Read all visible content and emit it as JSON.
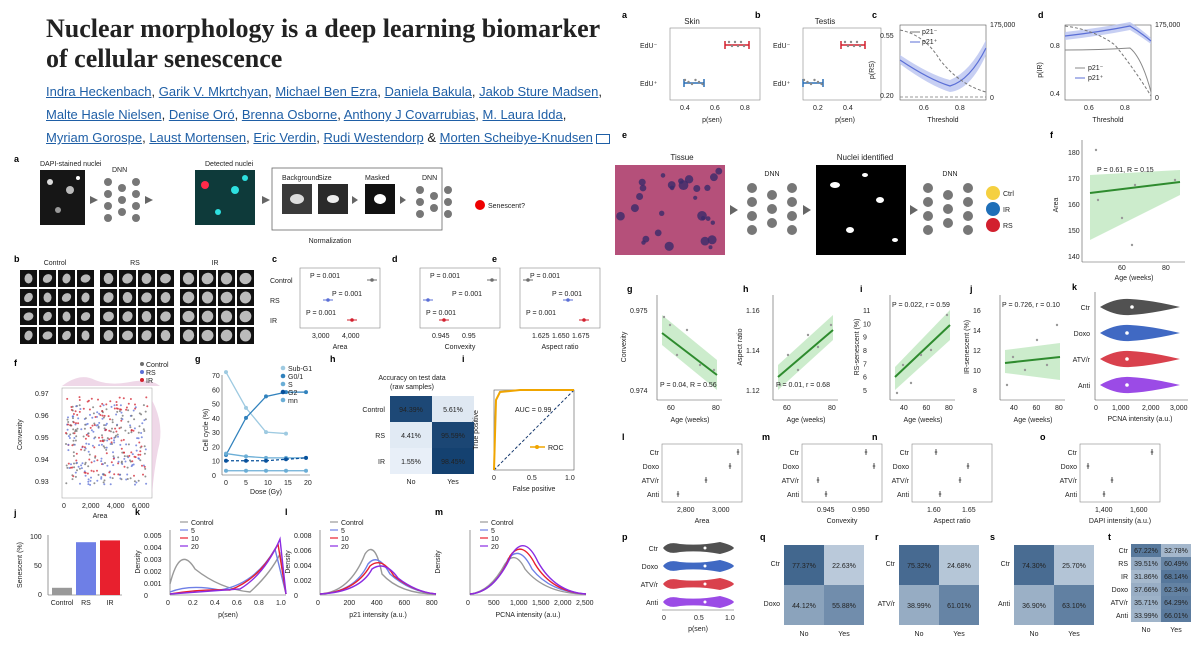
{
  "title": "Nuclear morphology is a deep learning biomarker of cellular senescence",
  "authors": [
    "Indra Heckenbach",
    "Garik V. Mkrtchyan",
    "Michael Ben Ezra",
    "Daniela Bakula",
    "Jakob Sture Madsen",
    "Malte Hasle Nielsen",
    "Denise Oró",
    "Brenna Osborne",
    "Anthony J Covarrubias",
    "M. Laura Idda",
    "Myriam Gorospe",
    "Laust Mortensen",
    "Eric Verdin",
    "Rudi Westendorp"
  ],
  "last_author": "Morten Scheibye-Knudsen",
  "and_sep": "&",
  "panel_a": {
    "letter": "a",
    "input_label": "DAPI-stained nuclei",
    "dnn": "DNN",
    "detected": "Detected nuclei",
    "steps": [
      "Background",
      "Size",
      "Masked"
    ],
    "normalization": "Normalization",
    "dnn2": "DNN",
    "output": "Senescent?"
  },
  "panel_b": {
    "letter": "b",
    "groups": [
      "Control",
      "RS",
      "IR"
    ]
  },
  "panel_cde": [
    {
      "letter": "c",
      "xlabel": "Area",
      "ticks": [
        "3,000",
        "4,000"
      ],
      "pvals": [
        "P = 0.001",
        "P = 0.001",
        "P = 0.001"
      ]
    },
    {
      "letter": "d",
      "xlabel": "Convexity",
      "ticks": [
        "0.945",
        "0.95"
      ],
      "pvals": [
        "P = 0.001",
        "P = 0.001",
        "P = 0.001"
      ]
    },
    {
      "letter": "e",
      "xlabel": "Aspect ratio",
      "ticks": [
        "1.625",
        "1.650",
        "1.675"
      ],
      "pvals": [
        "P = 0.001",
        "P = 0.001",
        "P = 0.001"
      ]
    }
  ],
  "cde_rows": [
    "Control",
    "RS",
    "IR"
  ],
  "panel_f": {
    "letter": "f",
    "legend": [
      "Control",
      "RS",
      "IR"
    ],
    "xlabel": "Area",
    "ylabel": "Convexity",
    "xticks": [
      "0",
      "2,000",
      "4,000",
      "6,000"
    ],
    "yticks": [
      "0.97",
      "0.96",
      "0.95",
      "0.94",
      "0.93"
    ]
  },
  "panel_g": {
    "letter": "g",
    "legend": [
      "Sub-G1",
      "G0/1",
      "S",
      "G2",
      "mn"
    ],
    "xlabel": "Dose (Gy)",
    "ylabel": "Cell cycle (%)",
    "xticks": [
      "0",
      "5",
      "10",
      "15",
      "20"
    ],
    "yticks": [
      "0",
      "10",
      "20",
      "30",
      "40",
      "50",
      "60",
      "70"
    ]
  },
  "panel_h": {
    "letter": "h",
    "title": "Accuracy on test data",
    "subtitle": "(raw samples)",
    "rows": [
      "Control",
      "RS",
      "IR"
    ],
    "cols": [
      "No",
      "Yes"
    ],
    "cells": [
      [
        "94.39%",
        "5.61%"
      ],
      [
        "4.41%",
        "95.59%"
      ],
      [
        "1.55%",
        "98.45%"
      ]
    ]
  },
  "panel_i": {
    "letter": "i",
    "auc": "AUC = 0.99",
    "legend": "ROC",
    "xlabel": "False positive",
    "ylabel": "True positive",
    "ticks": [
      "0",
      "0.5",
      "1.0"
    ]
  },
  "panel_j": {
    "letter": "j",
    "ylabel": "Senescent (%)",
    "cats": [
      "Control",
      "RS",
      "IR"
    ],
    "yticks": [
      "0",
      "50",
      "100"
    ]
  },
  "panel_k": {
    "letter": "k",
    "legend": [
      "Control",
      "5",
      "10",
      "20"
    ],
    "xlabel": "p(sen)",
    "ylabel": "Density",
    "xticks": [
      "0",
      "0.2",
      "0.4",
      "0.6",
      "0.8",
      "1.0"
    ],
    "yticks": [
      "0",
      "0.001",
      "0.002",
      "0.003",
      "0.004",
      "0.005"
    ]
  },
  "panel_l": {
    "letter": "l",
    "legend": [
      "Control",
      "5",
      "10",
      "20"
    ],
    "xlabel": "p21 intensity (a.u.)",
    "ylabel": "Density",
    "xticks": [
      "0",
      "200",
      "400",
      "600",
      "800"
    ],
    "yticks": [
      "0",
      "0.002",
      "0.004",
      "0.006",
      "0.008"
    ]
  },
  "panel_m": {
    "letter": "m",
    "legend": [
      "Control",
      "5",
      "10",
      "20"
    ],
    "xlabel": "PCNA intensity (a.u.)",
    "ylabel": "Density",
    "xticks": [
      "0",
      "500",
      "1,000",
      "1,500",
      "2,000",
      "2,500"
    ]
  },
  "right_top": [
    {
      "letter": "a",
      "title": "Skin",
      "rows": [
        "EdU⁻",
        "EdU⁺"
      ],
      "xlabel": "p(sen)",
      "ticks": [
        "0.4",
        "0.6",
        "0.8"
      ]
    },
    {
      "letter": "b",
      "title": "Testis",
      "rows": [
        "EdU⁻",
        "EdU⁺"
      ],
      "xlabel": "p(sen)",
      "ticks": [
        "0.2",
        "0.4"
      ]
    }
  ],
  "panel_rc": {
    "letter": "c",
    "ylabel": "p(RS)",
    "xlabel": "Threshold",
    "legend": [
      "p21⁻",
      "p21⁺"
    ],
    "yticks": [
      "0.55",
      "0.20"
    ],
    "rticks": [
      "175,000",
      "0"
    ],
    "xticks": [
      "0.6",
      "0.8"
    ]
  },
  "panel_rd": {
    "letter": "d",
    "ylabel": "p(IR)",
    "xlabel": "Threshold",
    "legend": [
      "p21⁻",
      "p21⁺"
    ],
    "yticks": [
      "0.8",
      "0.4"
    ],
    "rticks": [
      "175,000",
      "0"
    ],
    "xticks": [
      "0.6",
      "0.8"
    ]
  },
  "panel_re": {
    "letter": "e",
    "tissue": "Tissue",
    "dnn": "DNN",
    "nuclei": "Nuclei identified",
    "dnn2": "DNN",
    "classes": [
      "Ctrl",
      "IR",
      "RS"
    ]
  },
  "panel_rf": {
    "letter": "f",
    "ylabel": "Area",
    "xlabel": "Age (weeks)",
    "stat": "P = 0.61, R = 0.15",
    "yticks": [
      "180",
      "170",
      "160",
      "150",
      "140"
    ],
    "xticks": [
      "60",
      "80"
    ]
  },
  "row_gj": [
    {
      "letter": "g",
      "ylabel": "Convexity",
      "xlabel": "Age (weeks)",
      "stat": "P = 0.04, R = 0.56",
      "yticks": [
        "0.975",
        "0.974"
      ],
      "xticks": [
        "60",
        "80"
      ]
    },
    {
      "letter": "h",
      "ylabel": "Aspect ratio",
      "xlabel": "Age (weeks)",
      "stat": "P = 0.01, r = 0.68",
      "yticks": [
        "1.16",
        "1.14",
        "1.12"
      ],
      "xticks": [
        "60",
        "80"
      ]
    },
    {
      "letter": "i",
      "ylabel": "RS-senescent (%)",
      "xlabel": "Age (weeks)",
      "stat": "P = 0.022, r = 0.59",
      "yticks": [
        "11",
        "10",
        "9",
        "8",
        "7",
        "6",
        "5"
      ],
      "xticks": [
        "40",
        "60",
        "80"
      ]
    },
    {
      "letter": "j",
      "ylabel": "IR-senescent (%)",
      "xlabel": "Age (weeks)",
      "stat": "P = 0.726, r = 0.10",
      "yticks": [
        "16",
        "14",
        "12",
        "10",
        "8"
      ],
      "xticks": [
        "40",
        "60",
        "80"
      ]
    }
  ],
  "panel_rk": {
    "letter": "k",
    "rows": [
      "Ctr",
      "Doxo",
      "ATV/r",
      "Anti"
    ],
    "xlabel": "PCNA intensity (a.u.)",
    "xticks": [
      "0",
      "1,000",
      "2,000",
      "3,000"
    ]
  },
  "row_lo": [
    {
      "letter": "l",
      "xlabel": "Area",
      "ticks": [
        "2,800",
        "3,000"
      ]
    },
    {
      "letter": "m",
      "xlabel": "Convexity",
      "ticks": [
        "0.945",
        "0.950"
      ]
    },
    {
      "letter": "n",
      "xlabel": "Aspect ratio",
      "ticks": [
        "1.60",
        "1.65"
      ]
    },
    {
      "letter": "o",
      "xlabel": "DAPI intensity (a.u.)",
      "ticks": [
        "1,400",
        "1,600"
      ]
    }
  ],
  "lo_rows": [
    "Ctr",
    "Doxo",
    "ATV/r",
    "Anti"
  ],
  "panel_rp": {
    "letter": "p",
    "rows": [
      "Ctr",
      "Doxo",
      "ATV/r",
      "Anti"
    ],
    "xlabel": "p(sen)",
    "xticks": [
      "0",
      "0.5",
      "1.0"
    ]
  },
  "matrices": [
    {
      "letter": "q",
      "rows": [
        "Ctr",
        "Doxo"
      ],
      "cells": [
        [
          "77.37%",
          "22.63%"
        ],
        [
          "44.12%",
          "55.88%"
        ]
      ],
      "cols": [
        "No",
        "Yes"
      ]
    },
    {
      "letter": "r",
      "rows": [
        "Ctr",
        "ATV/r"
      ],
      "cells": [
        [
          "75.32%",
          "24.68%"
        ],
        [
          "38.99%",
          "61.01%"
        ]
      ],
      "cols": [
        "No",
        "Yes"
      ]
    },
    {
      "letter": "s",
      "rows": [
        "Ctr",
        "Anti"
      ],
      "cells": [
        [
          "74.30%",
          "25.70%"
        ],
        [
          "36.90%",
          "63.10%"
        ]
      ],
      "cols": [
        "No",
        "Yes"
      ]
    }
  ],
  "panel_rt": {
    "letter": "t",
    "rows": [
      "Ctr",
      "RS",
      "IR",
      "Doxo",
      "ATV/r",
      "Anti"
    ],
    "cells": [
      [
        "67.22%",
        "32.78%"
      ],
      [
        "39.51%",
        "60.49%"
      ],
      [
        "31.86%",
        "68.14%"
      ],
      [
        "37.66%",
        "62.34%"
      ],
      [
        "35.71%",
        "64.29%"
      ],
      [
        "33.99%",
        "66.01%"
      ]
    ],
    "cols": [
      "No",
      "Yes"
    ]
  },
  "colors": {
    "control": "#6e6e6e",
    "rs": "#5b6fd6",
    "ir": "#d2202e",
    "purple": "#8a2be2",
    "green": "#2e8b2e",
    "navy": "#173a6e",
    "orange": "#f0a500"
  }
}
